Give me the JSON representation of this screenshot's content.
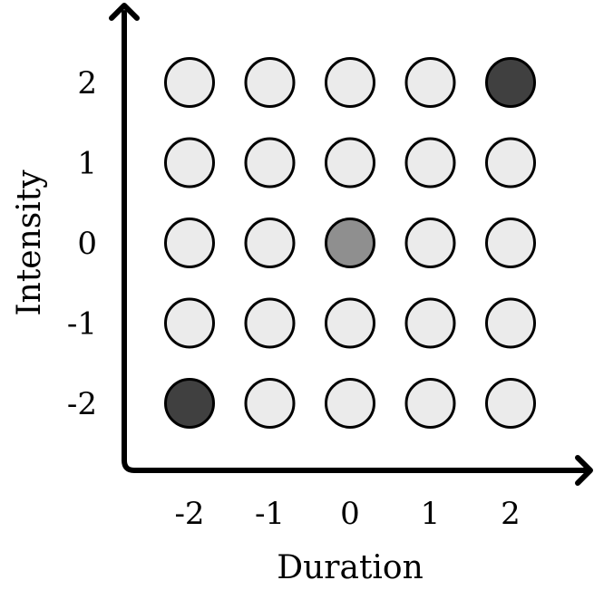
{
  "chart_data": {
    "type": "scatter",
    "xlabel": "Duration",
    "ylabel": "Intensity",
    "x_ticks": [
      "-2",
      "-1",
      "0",
      "1",
      "2"
    ],
    "y_ticks": [
      "2",
      "1",
      "0",
      "-1",
      "-2"
    ],
    "x_values": [
      -2,
      -1,
      0,
      1,
      2
    ],
    "y_values": [
      2,
      1,
      0,
      -1,
      -2
    ],
    "xlim": [
      -2,
      2
    ],
    "ylim": [
      -2,
      2
    ],
    "grid": false,
    "colors": {
      "default": "#ebebeb",
      "medium": "#8f8f8f",
      "dark": "#404040",
      "stroke": "#000000"
    },
    "highlighted_points": [
      {
        "x": 2,
        "y": 2,
        "shade": "dark"
      },
      {
        "x": 0,
        "y": 0,
        "shade": "medium"
      },
      {
        "x": -2,
        "y": -2,
        "shade": "dark"
      }
    ]
  }
}
